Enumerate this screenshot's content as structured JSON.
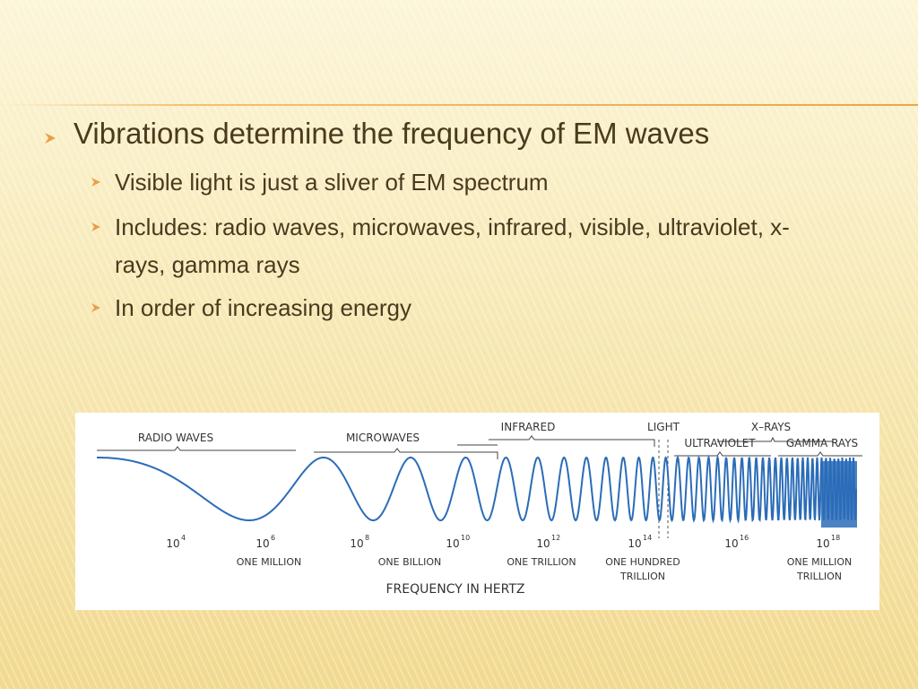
{
  "slide": {
    "bullets": [
      {
        "text": "Vibrations determine the frequency of EM waves",
        "sub_bullets": [
          "Visible light is just a sliver of EM spectrum",
          "Includes: radio waves, microwaves, infrared, visible, ultraviolet, x-rays, gamma rays",
          "In order of increasing energy"
        ]
      }
    ]
  },
  "figure": {
    "bands": [
      "RADIO WAVES",
      "MICROWAVES",
      "INFRARED",
      "LIGHT",
      "X–RAYS",
      "ULTRAVIOLET",
      "GAMMA RAYS"
    ],
    "frequencies": [
      {
        "base": "10",
        "exponent": "4"
      },
      {
        "base": "10",
        "exponent": "6"
      },
      {
        "base": "10",
        "exponent": "8"
      },
      {
        "base": "10",
        "exponent": "10"
      },
      {
        "base": "10",
        "exponent": "12"
      },
      {
        "base": "10",
        "exponent": "14"
      },
      {
        "base": "10",
        "exponent": "16"
      },
      {
        "base": "10",
        "exponent": "18"
      }
    ],
    "frequency_names": [
      [
        "ONE MILLION"
      ],
      [
        "ONE BILLION"
      ],
      [
        "ONE TRILLION"
      ],
      [
        "ONE HUNDRED",
        "TRILLION"
      ],
      [
        "ONE MILLION",
        "TRILLION"
      ]
    ],
    "axis_label": "FREQUENCY IN HERTZ"
  }
}
